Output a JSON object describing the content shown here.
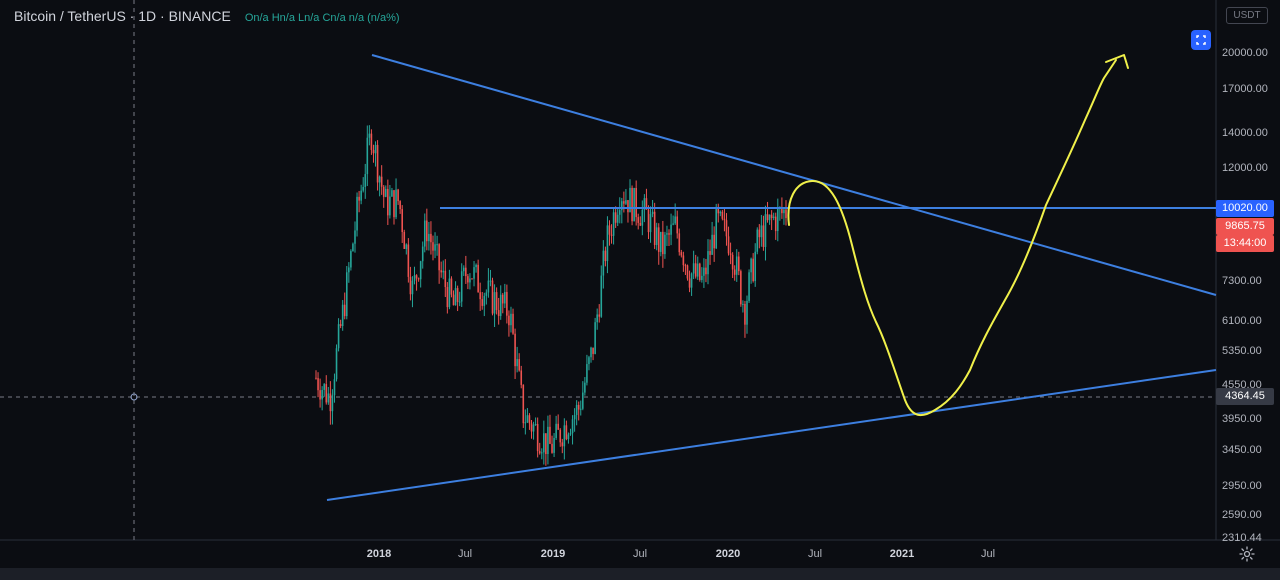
{
  "header": {
    "symbol": "Bitcoin / TetherUS · 1D · BINANCE",
    "ohlc": "On/a Hn/a Ln/a Cn/a n/a (n/a%)"
  },
  "currency_badge": "USDT",
  "price_axis": {
    "labels": [
      "20000.00",
      "17000.00",
      "14000.00",
      "12000.00",
      "7300.00",
      "6100.00",
      "5350.00",
      "4550.00",
      "3950.00",
      "3450.00",
      "2950.00",
      "2590.00",
      "2310.44"
    ],
    "level_line_tag": "10020.00",
    "last_price_tag": "9865.75",
    "countdown_tag": "13:44:00",
    "crosshair_tag": "4364.45"
  },
  "time_axis": {
    "labels": [
      {
        "text": "2018",
        "year": true
      },
      {
        "text": "Jul",
        "year": false
      },
      {
        "text": "2019",
        "year": true
      },
      {
        "text": "Jul",
        "year": false
      },
      {
        "text": "2020",
        "year": true
      },
      {
        "text": "Jul",
        "year": false
      },
      {
        "text": "2021",
        "year": true
      },
      {
        "text": "Jul",
        "year": false
      }
    ]
  },
  "colors": {
    "background": "#0b0d12",
    "up": "#26a69a",
    "down": "#ef5350",
    "trendline": "#3d7fe0",
    "level_tag": "#2962ff",
    "projection": "#f0f04a"
  },
  "icons": {
    "mode": "auto-scale-icon",
    "settings": "gear-icon"
  },
  "chart_data": {
    "type": "candlestick",
    "symbol": "BTCUSDT",
    "interval": "1D",
    "x": [
      "2017-08",
      "2017-09",
      "2017-10",
      "2017-11",
      "2017-12",
      "2018-01",
      "2018-02",
      "2018-03",
      "2018-04",
      "2018-05",
      "2018-06",
      "2018-07",
      "2018-08",
      "2018-09",
      "2018-10",
      "2018-11",
      "2018-12",
      "2019-01",
      "2019-02",
      "2019-03",
      "2019-04",
      "2019-05",
      "2019-06",
      "2019-07",
      "2019-08",
      "2019-09",
      "2019-10",
      "2019-11",
      "2019-12",
      "2020-01",
      "2020-02",
      "2020-03",
      "2020-04",
      "2020-05",
      "2020-06"
    ],
    "close": [
      4700,
      4300,
      6400,
      9900,
      14000,
      10200,
      10300,
      6900,
      9200,
      7500,
      6400,
      7700,
      7000,
      6600,
      6300,
      4000,
      3700,
      3450,
      3800,
      4100,
      5300,
      8500,
      10800,
      10100,
      9600,
      8300,
      9200,
      7500,
      7200,
      9400,
      8600,
      6400,
      8700,
      9450,
      9865.75
    ],
    "trendlines": [
      {
        "from": [
          "2017-12",
          20000
        ],
        "to": [
          "2021-12",
          6900
        ]
      },
      {
        "from": [
          "2017-08",
          2800
        ],
        "to": [
          "2021-12",
          4950
        ]
      },
      {
        "from": [
          "2018-05",
          10020
        ],
        "to": [
          "2021-12",
          10020
        ]
      }
    ],
    "ylim": [
      2310.44,
      21000
    ],
    "scale": "log"
  }
}
